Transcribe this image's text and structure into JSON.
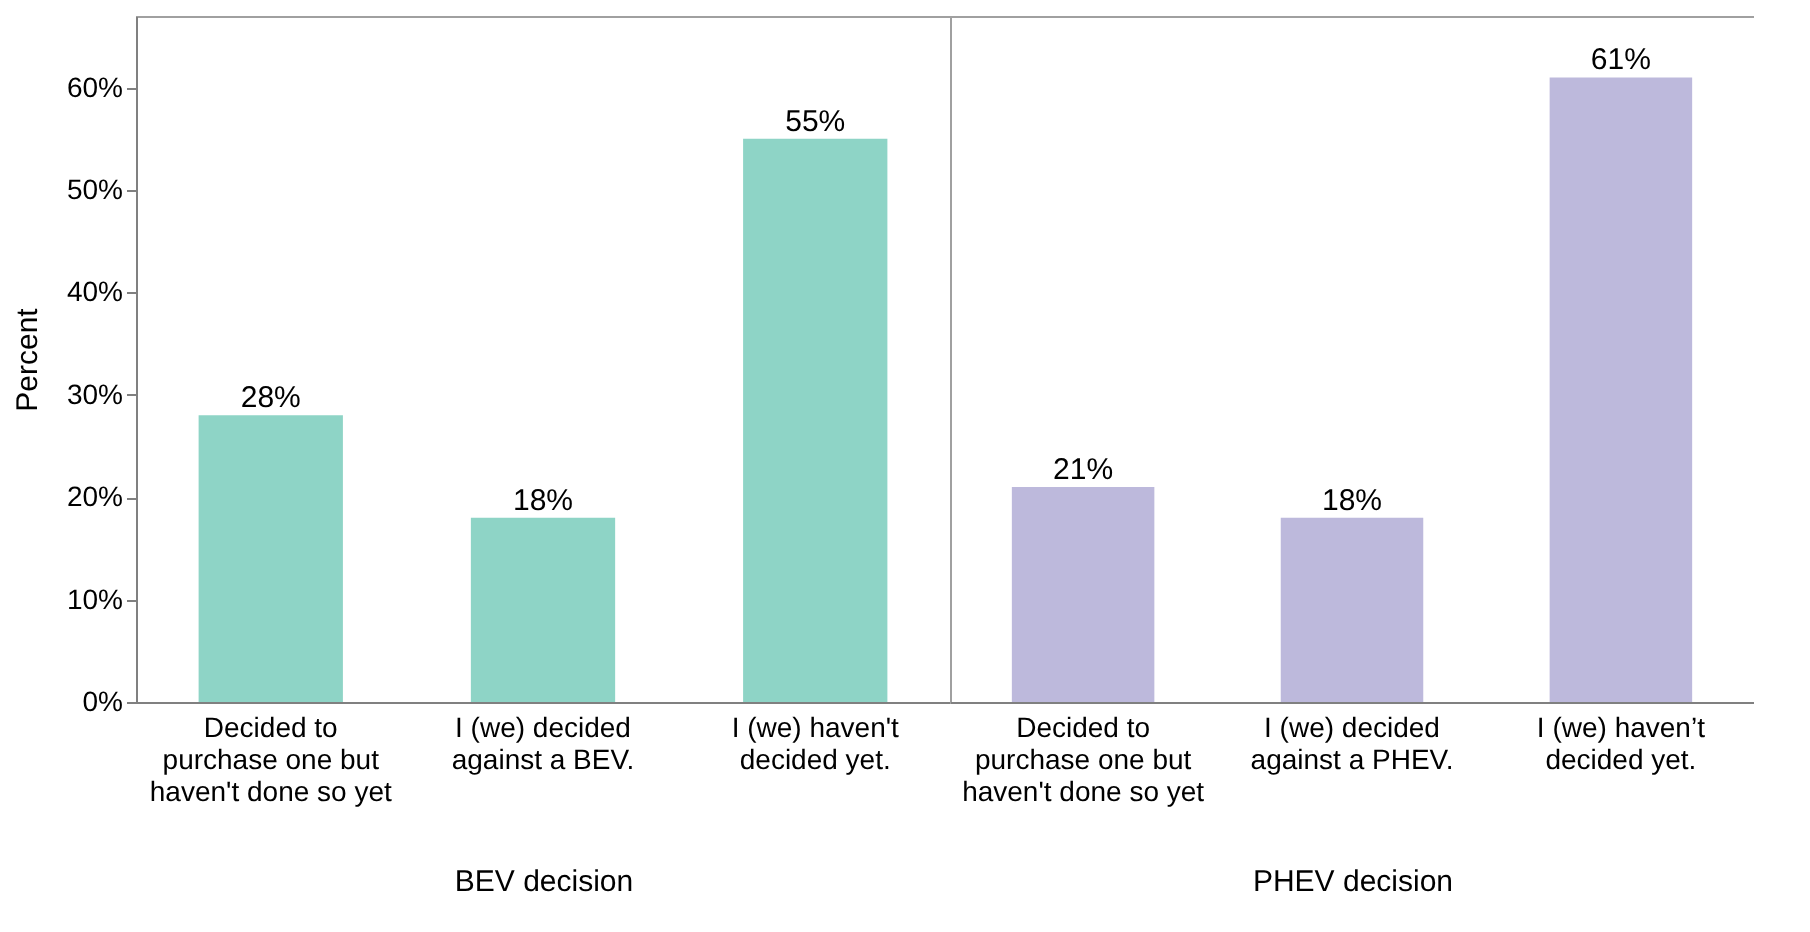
{
  "chart_data": [
    {
      "type": "bar",
      "xlabel": "BEV decision",
      "ylabel": "Percent",
      "categories": [
        "Decided to purchase one but haven't done so yet",
        "I (we) decided against a BEV.",
        "I (we) haven't decided yet."
      ],
      "values": [
        28,
        18,
        55
      ],
      "value_labels": [
        "28%",
        "18%",
        "55%"
      ],
      "color": "#8ed4c6",
      "ylim": [
        0,
        67
      ],
      "yticks": [
        {
          "value": 0,
          "label": "0%"
        },
        {
          "value": 10,
          "label": "10%"
        },
        {
          "value": 20,
          "label": "20%"
        },
        {
          "value": 30,
          "label": "30%"
        },
        {
          "value": 40,
          "label": "40%"
        },
        {
          "value": 50,
          "label": "50%"
        },
        {
          "value": 60,
          "label": "60%"
        }
      ],
      "grid": false
    },
    {
      "type": "bar",
      "xlabel": "PHEV decision",
      "categories": [
        "Decided to purchase one but haven't done so yet",
        "I (we) decided against a PHEV.",
        "I (we) haven’t decided yet."
      ],
      "values": [
        21,
        18,
        61
      ],
      "value_labels": [
        "21%",
        "18%",
        "61%"
      ],
      "color": "#bdb9dc",
      "ylim": [
        0,
        67
      ],
      "tick_labels": "x",
      "grid": false
    }
  ]
}
